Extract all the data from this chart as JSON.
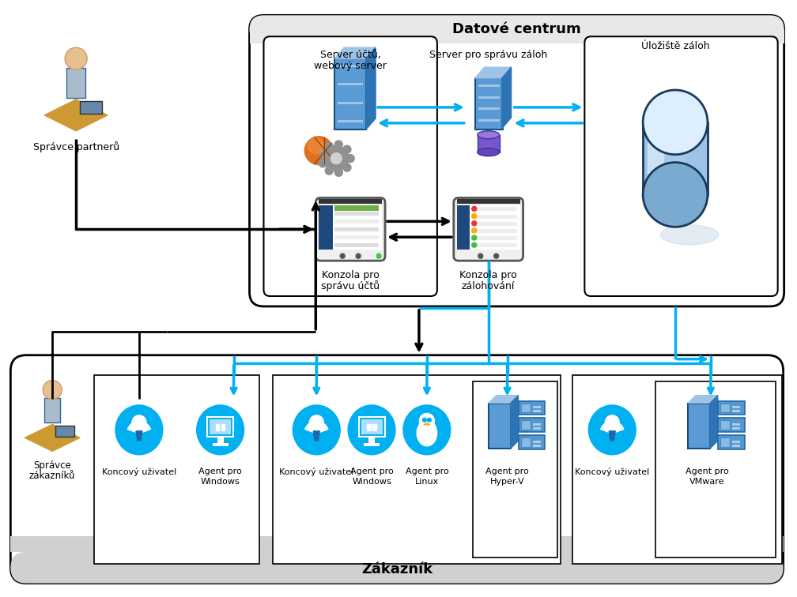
{
  "bg": "#ffffff",
  "black": "#000000",
  "cyan": "#00b0f0",
  "dc_fill": "#f8f8f8",
  "title_dc": "Datové centrum",
  "title_cust": "Zákazník",
  "label_partner": "Správce partnerů",
  "label_server_uctu": [
    "Server účtů,",
    "webový server"
  ],
  "label_server_sprava": "Server pro správu záloh",
  "label_uloziste": "Úložiště záloh",
  "label_konzola_ucty": [
    "Konzola pro",
    "správu účtů"
  ],
  "label_konzola_zaloha": [
    "Konzola pro",
    "zálohování"
  ],
  "label_spravce_zak": [
    "Správce",
    "zákazníků"
  ],
  "label_koncovy": "Koncový uživatel",
  "label_agent_win": [
    "Agent pro",
    "Windows"
  ],
  "label_agent_linux": [
    "Agent pro",
    "Linux"
  ],
  "label_agent_hyperv": [
    "Agent pro",
    "Hyper-V"
  ],
  "label_agent_vmware": [
    "Agent pro",
    "VMware"
  ]
}
